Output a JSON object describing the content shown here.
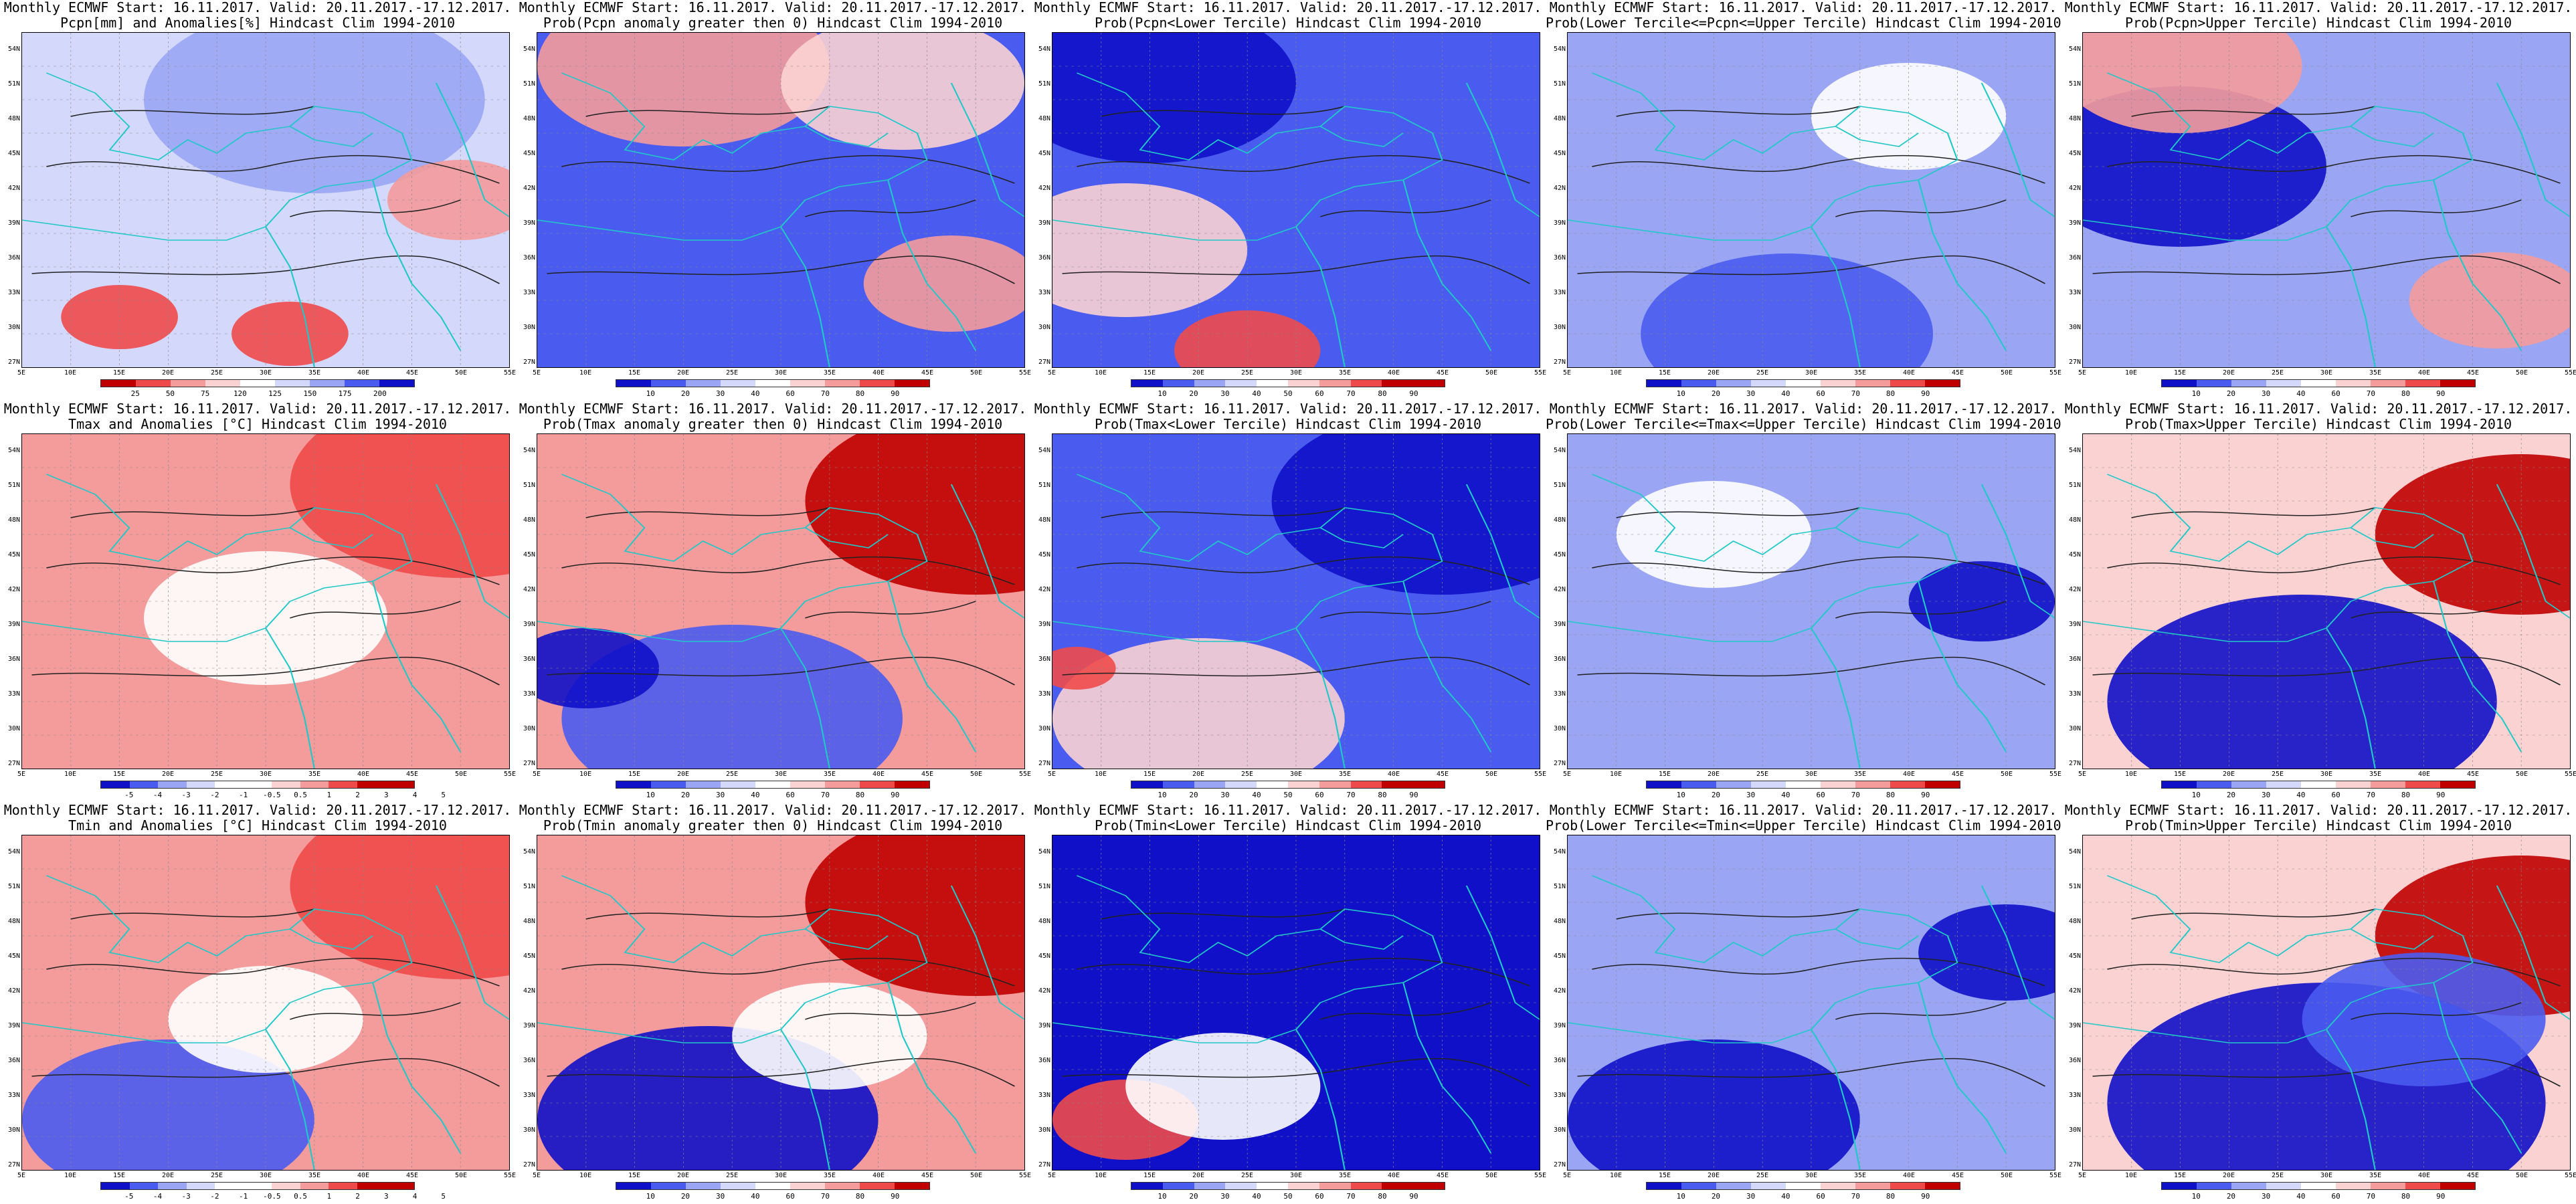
{
  "common_title": "Monthly ECMWF Start: 16.11.2017. Valid: 20.11.2017.-17.12.2017.",
  "lat_ticks": [
    "54N",
    "51N",
    "48N",
    "45N",
    "42N",
    "39N",
    "36N",
    "33N",
    "30N",
    "27N"
  ],
  "lon_ticks": [
    "5E",
    "10E",
    "15E",
    "20E",
    "25E",
    "30E",
    "35E",
    "40E",
    "45E",
    "50E",
    "55E"
  ],
  "panels": [
    {
      "subtitle": "Pcpn[mm] and Anomalies[%] Hindcast Clim 1994-2010",
      "type": "anomaly",
      "colorbar": [
        "25",
        "50",
        "75",
        "120",
        "125",
        "150",
        "175",
        "200"
      ]
    },
    {
      "subtitle": "Prob(Pcpn anomaly greater then 0) Hindcast Clim 1994-2010",
      "type": "prob-updown",
      "colorbar": [
        "10",
        "20",
        "30",
        "40",
        "60",
        "70",
        "80",
        "90"
      ]
    },
    {
      "subtitle": "Prob(Pcpn<Lower Tercile) Hindcast Clim 1994-2010",
      "type": "prob-down",
      "colorbar": [
        "10",
        "20",
        "30",
        "40",
        "50",
        "60",
        "70",
        "80",
        "90"
      ]
    },
    {
      "subtitle": "Prob(Lower Tercile<=Pcpn<=Upper Tercile) Hindcast Clim 1994-2010",
      "type": "prob-mid",
      "colorbar": [
        "10",
        "20",
        "30",
        "40",
        "60",
        "70",
        "80",
        "90"
      ]
    },
    {
      "subtitle": "Prob(Pcpn>Upper Tercile) Hindcast Clim 1994-2010",
      "type": "prob-up",
      "colorbar": [
        "10",
        "20",
        "30",
        "40",
        "60",
        "70",
        "80",
        "90"
      ]
    },
    {
      "subtitle": "Tmax and Anomalies [°C] Hindcast Clim 1994-2010",
      "type": "anomaly-t",
      "colorbar": [
        "-5",
        "-4",
        "-3",
        "-2",
        "-1",
        "-0.5",
        "0.5",
        "1",
        "2",
        "3",
        "4",
        "5"
      ]
    },
    {
      "subtitle": "Prob(Tmax anomaly greater then 0) Hindcast Clim 1994-2010",
      "type": "prob-updown",
      "colorbar": [
        "10",
        "20",
        "30",
        "40",
        "60",
        "70",
        "80",
        "90"
      ]
    },
    {
      "subtitle": "Prob(Tmax<Lower Tercile) Hindcast Clim 1994-2010",
      "type": "prob-down",
      "colorbar": [
        "10",
        "20",
        "30",
        "40",
        "50",
        "60",
        "70",
        "80",
        "90"
      ]
    },
    {
      "subtitle": "Prob(Lower Tercile<=Tmax<=Upper Tercile) Hindcast Clim 1994-2010",
      "type": "prob-mid",
      "colorbar": [
        "10",
        "20",
        "30",
        "40",
        "60",
        "70",
        "80",
        "90"
      ]
    },
    {
      "subtitle": "Prob(Tmax>Upper Tercile) Hindcast Clim 1994-2010",
      "type": "prob-up",
      "colorbar": [
        "10",
        "20",
        "30",
        "40",
        "60",
        "70",
        "80",
        "90"
      ]
    },
    {
      "subtitle": "Tmin and Anomalies [°C] Hindcast Clim 1994-2010",
      "type": "anomaly-t",
      "colorbar": [
        "-5",
        "-4",
        "-3",
        "-2",
        "-1",
        "-0.5",
        "0.5",
        "1",
        "2",
        "3",
        "4",
        "5"
      ]
    },
    {
      "subtitle": "Prob(Tmin anomaly greater then 0) Hindcast Clim 1994-2010",
      "type": "prob-updown",
      "colorbar": [
        "10",
        "20",
        "30",
        "40",
        "60",
        "70",
        "80",
        "90"
      ]
    },
    {
      "subtitle": "Prob(Tmin<Lower Tercile) Hindcast Clim 1994-2010",
      "type": "prob-down",
      "colorbar": [
        "10",
        "20",
        "30",
        "40",
        "50",
        "60",
        "70",
        "80",
        "90"
      ]
    },
    {
      "subtitle": "Prob(Lower Tercile<=Tmin<=Upper Tercile) Hindcast Clim 1994-2010",
      "type": "prob-mid",
      "colorbar": [
        "10",
        "20",
        "30",
        "40",
        "60",
        "70",
        "80",
        "90"
      ]
    },
    {
      "subtitle": "Prob(Tmin>Upper Tercile) Hindcast Clim 1994-2010",
      "type": "prob-up",
      "colorbar": [
        "10",
        "20",
        "30",
        "40",
        "60",
        "70",
        "80",
        "90"
      ]
    }
  ],
  "colors": {
    "blue_dark": "#1010c8",
    "blue_mid": "#4a5cf0",
    "blue_light": "#9aa6f4",
    "blue_pale": "#d4d8fb",
    "white": "#ffffff",
    "red_pale": "#fbd2d2",
    "red_light": "#f49b9b",
    "red_mid": "#ef4a4a",
    "red_dark": "#c00000",
    "coast": "#20c8c8",
    "contour": "#222222"
  }
}
